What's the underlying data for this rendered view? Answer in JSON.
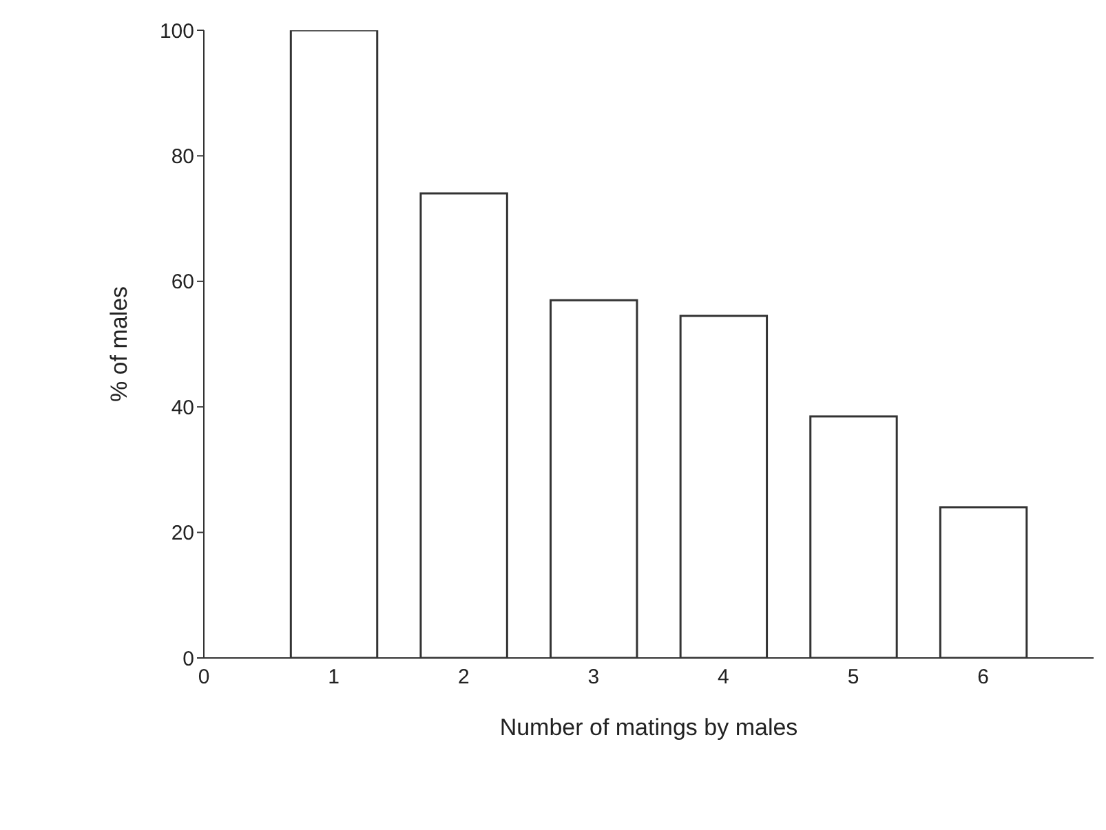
{
  "chart_data": {
    "type": "bar",
    "xlabel": "Number of matings by males",
    "ylabel": "% of males",
    "x": [
      1,
      2,
      3,
      4,
      5,
      6
    ],
    "values": [
      100,
      74,
      57,
      54.5,
      38.5,
      24
    ],
    "color": "#ffffff",
    "xlim": [
      0,
      6.85
    ],
    "xticks": [
      0,
      1,
      2,
      3,
      4,
      5,
      6
    ],
    "ylim": [
      0,
      100
    ],
    "yticks": [
      0,
      20,
      40,
      60,
      80,
      100
    ],
    "grid": false,
    "legend": false
  }
}
